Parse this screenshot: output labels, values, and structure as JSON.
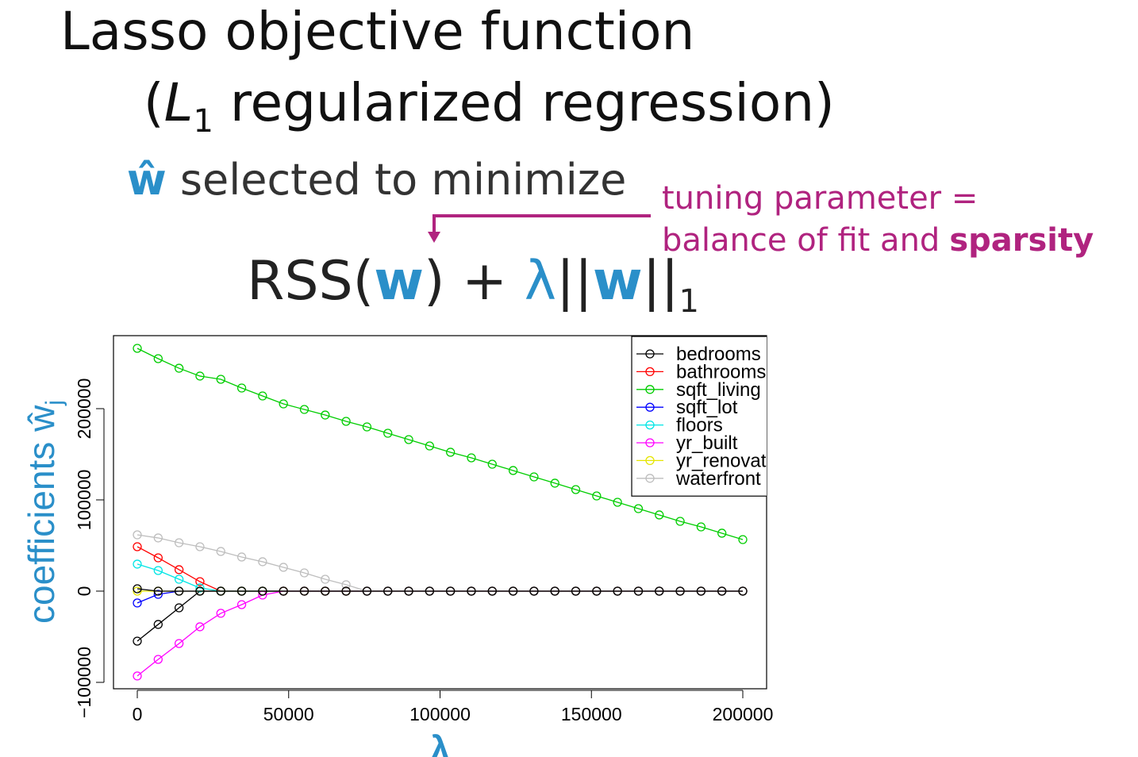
{
  "slide": {
    "title_line1": "Lasso objective function",
    "title_line2": {
      "open": "(",
      "L": "L",
      "sub": "1",
      "rest": " regularized regression)"
    },
    "subtitle": {
      "w_hat": "ŵ",
      "text": " selected to minimize"
    },
    "formula": {
      "rss": "RSS(",
      "w1": "w",
      "mid": ") + ",
      "lambda": "λ",
      "bars1": "||",
      "w2": "w",
      "bars2": "||",
      "sub": "1"
    },
    "annotation": {
      "line1": "tuning parameter =",
      "line2": "balance of fit and",
      "bold": "sparsity"
    }
  },
  "chart_data": {
    "type": "line",
    "xlabel": "λ",
    "ylabel": "coefficients ŵ",
    "ylabel_sub": "j",
    "x": [
      0,
      6897,
      13793,
      20690,
      27586,
      34483,
      41379,
      48276,
      55172,
      62069,
      68966,
      75862,
      82759,
      89655,
      96552,
      103448,
      110345,
      117241,
      124138,
      131034,
      137931,
      144828,
      151724,
      158621,
      165517,
      172414,
      179310,
      186207,
      193103,
      200000
    ],
    "xlim": [
      -7864,
      207864
    ],
    "ylim": [
      -107000,
      280000
    ],
    "xticks": [
      0,
      50000,
      100000,
      150000,
      200000
    ],
    "yticks": [
      {
        "value": -100000,
        "label": "−100000"
      },
      0,
      100000,
      200000
    ],
    "legend": "topright",
    "series": [
      {
        "name": "bedrooms",
        "color": "#000000",
        "values": [
          -54800,
          -36500,
          -18300,
          0,
          0,
          0,
          0,
          0,
          0,
          0,
          0,
          0,
          0,
          0,
          0,
          0,
          0,
          0,
          0,
          0,
          0,
          0,
          0,
          0,
          0,
          0,
          0,
          0,
          0,
          0
        ]
      },
      {
        "name": "bathrooms",
        "color": "#ff0000",
        "values": [
          48700,
          36500,
          23500,
          10400,
          0,
          0,
          0,
          0,
          0,
          0,
          0,
          0,
          0,
          0,
          0,
          0,
          0,
          0,
          0,
          0,
          0,
          0,
          0,
          0,
          0,
          0,
          0,
          0,
          0,
          0
        ]
      },
      {
        "name": "sqft_living",
        "color": "#00cd00",
        "values": [
          266100,
          254800,
          244300,
          235700,
          232200,
          222600,
          213900,
          205200,
          199100,
          193000,
          186100,
          180000,
          173000,
          166100,
          159100,
          152200,
          146100,
          139100,
          132200,
          125200,
          118300,
          111300,
          104300,
          97400,
          90400,
          83500,
          76500,
          70400,
          63500,
          56500
        ]
      },
      {
        "name": "sqft_lot",
        "color": "#0000ff",
        "values": [
          -13000,
          -3500,
          0,
          0,
          0,
          0,
          0,
          0,
          0,
          0,
          0,
          0,
          0,
          0,
          0,
          0,
          0,
          0,
          0,
          0,
          0,
          0,
          0,
          0,
          0,
          0,
          0,
          0,
          0,
          0
        ]
      },
      {
        "name": "floors",
        "color": "#00e5e5",
        "values": [
          29600,
          22600,
          13000,
          3500,
          0,
          0,
          0,
          0,
          0,
          0,
          0,
          0,
          0,
          0,
          0,
          0,
          0,
          0,
          0,
          0,
          0,
          0,
          0,
          0,
          0,
          0,
          0,
          0,
          0,
          0
        ]
      },
      {
        "name": "yr_built",
        "color": "#ff00ff",
        "values": [
          -93000,
          -74800,
          -57400,
          -39100,
          -24300,
          -14800,
          -4300,
          0,
          0,
          0,
          0,
          0,
          0,
          0,
          0,
          0,
          0,
          0,
          0,
          0,
          0,
          0,
          0,
          0,
          0,
          0,
          0,
          0,
          0,
          0
        ]
      },
      {
        "name": "yr_renovated",
        "color": "#e5e500",
        "values": [
          0,
          0,
          0,
          0,
          0,
          0,
          0,
          0,
          0,
          0,
          0,
          0,
          0,
          0,
          0,
          0,
          0,
          0,
          0,
          0,
          0,
          0,
          0,
          0,
          0,
          0,
          0,
          0,
          0,
          0
        ]
      },
      {
        "name": "waterfront",
        "color": "#bebebe",
        "values": [
          61700,
          58300,
          53000,
          48700,
          43500,
          37400,
          32200,
          26100,
          20000,
          13000,
          7000,
          0,
          0,
          0,
          0,
          0,
          0,
          0,
          0,
          0,
          0,
          0,
          0,
          0,
          0,
          0,
          0,
          0,
          0,
          0
        ]
      },
      {
        "color": "#000000",
        "values": [
          2600,
          0,
          0,
          0,
          0,
          0,
          0,
          0,
          0,
          0,
          0,
          0,
          0,
          0,
          0,
          0,
          0,
          0,
          0,
          0,
          0,
          0,
          0,
          0,
          0,
          0,
          0,
          0,
          0,
          0
        ]
      }
    ]
  }
}
